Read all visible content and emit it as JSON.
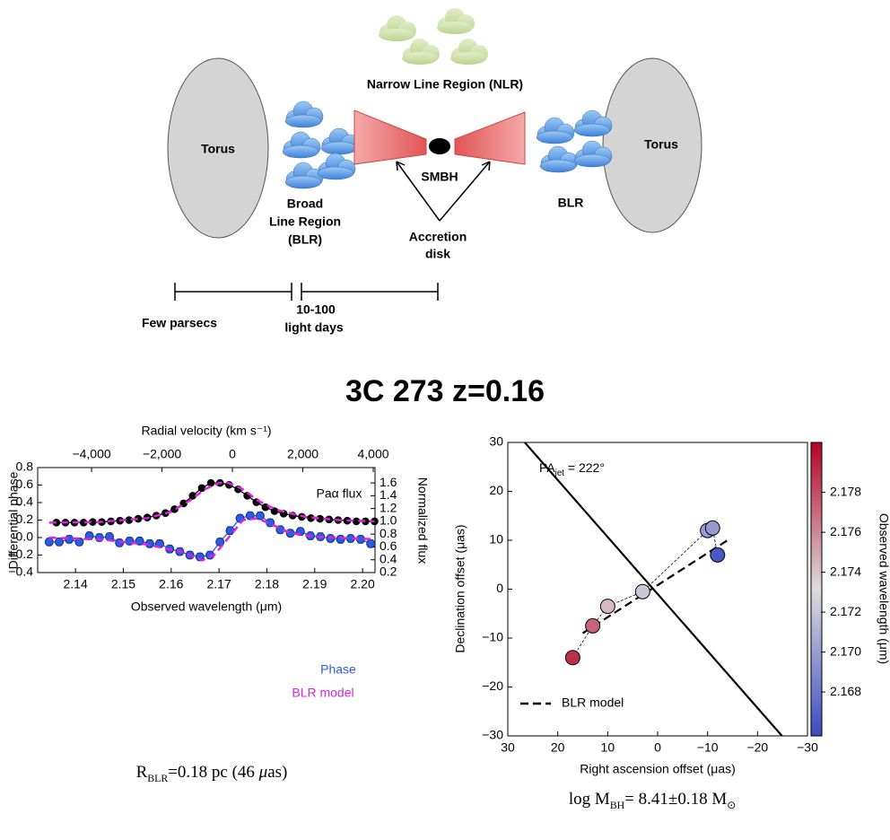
{
  "diagram": {
    "nlr": "Narrow Line Region (NLR)",
    "torus_left": "Torus",
    "torus_right": "Torus",
    "blr_left": [
      "Broad",
      "Line Region",
      "(BLR)"
    ],
    "smbh": "SMBH",
    "blr_right": "BLR",
    "accretion": [
      "Accretion",
      "disk"
    ],
    "scale_left": "Few parsecs",
    "scale_right": [
      "10-100",
      "light days"
    ]
  },
  "title": "3C 273 z=0.16",
  "chart_data": [
    {
      "type": "line",
      "xlabel": "Observed wavelength (μm)",
      "ylabel": "Differential phase",
      "y2label": "Normalized flux",
      "x2label": "Radial velocity (km s⁻¹)",
      "xlim": [
        2.1321,
        2.2026
      ],
      "xticks": [
        2.14,
        2.15,
        2.16,
        2.17,
        2.18,
        2.19,
        {
          "value": 2.2,
          "label": "2.20"
        }
      ],
      "x2lim": [
        -5530,
        4050
      ],
      "x2ticks": [
        {
          "value": -4000,
          "label": "−4,000"
        },
        {
          "value": -2000,
          "label": "−2,000"
        },
        0,
        {
          "value": 2000,
          "label": "2,000"
        },
        {
          "value": 4000,
          "label": "4,000"
        }
      ],
      "ylim": [
        -0.4,
        0.8
      ],
      "yticks": [
        {
          "value": -0.4,
          "label": "−0.4"
        },
        {
          "value": -0.2,
          "label": "−0.2"
        },
        {
          "value": 0,
          "label": "0.0"
        },
        0.2,
        0.4,
        0.6,
        0.8
      ],
      "y2lim": [
        0.2,
        1.84
      ],
      "y2ticks": [
        0.2,
        0.4,
        0.6,
        0.8,
        {
          "value": 1,
          "label": "1.0"
        },
        1.2,
        1.4,
        1.6
      ],
      "series": [
        {
          "name": "Paα flux",
          "color": "#000000",
          "axis": "y2",
          "marker": "circle",
          "x": [
            2.136,
            2.1379,
            2.1398,
            2.1417,
            2.1436,
            2.1455,
            2.1474,
            2.1493,
            2.1512,
            2.1531,
            2.155,
            2.1569,
            2.1588,
            2.1607,
            2.1626,
            2.1645,
            2.1664,
            2.1683,
            2.1702,
            2.1721,
            2.174,
            2.1759,
            2.1778,
            2.1797,
            2.1816,
            2.1835,
            2.1854,
            2.1873,
            2.1892,
            2.1911,
            2.193,
            2.1949,
            2.1968,
            2.1987,
            2.2006,
            2.2025
          ],
          "values": [
            0.98,
            0.98,
            0.98,
            0.98,
            0.99,
            0.99,
            1.0,
            1.01,
            1.02,
            1.04,
            1.06,
            1.09,
            1.13,
            1.19,
            1.28,
            1.4,
            1.52,
            1.6,
            1.6,
            1.57,
            1.5,
            1.4,
            1.3,
            1.22,
            1.16,
            1.12,
            1.09,
            1.07,
            1.05,
            1.04,
            1.03,
            1.02,
            1.01,
            1.0,
            1.0,
            1.0
          ]
        },
        {
          "color": "#e020e0",
          "axis": "y2",
          "dash": true,
          "x": [
            2.1345,
            2.145,
            2.155,
            2.16,
            2.164,
            2.167,
            2.17,
            2.172,
            2.175,
            2.178,
            2.182,
            2.188,
            2.195,
            2.2025
          ],
          "values": [
            0.98,
            0.99,
            1.05,
            1.15,
            1.33,
            1.5,
            1.6,
            1.6,
            1.5,
            1.33,
            1.18,
            1.07,
            1.02,
            1.0
          ]
        },
        {
          "name": "Phase",
          "color": "#2b5ce6",
          "marker": "circle",
          "x": [
            2.1345,
            2.1366,
            2.1387,
            2.1408,
            2.1429,
            2.145,
            2.1471,
            2.1492,
            2.1513,
            2.1534,
            2.1555,
            2.1576,
            2.1597,
            2.1618,
            2.1639,
            2.166,
            2.1681,
            2.1702,
            2.1723,
            2.1744,
            2.1765,
            2.1786,
            2.1807,
            2.1828,
            2.1849,
            2.187,
            2.1891,
            2.1912,
            2.1933,
            2.1954,
            2.1975,
            2.1996,
            2.2017
          ],
          "values": [
            -0.05,
            -0.05,
            -0.02,
            -0.05,
            0.02,
            0.0,
            0.01,
            -0.06,
            -0.04,
            -0.04,
            -0.07,
            -0.07,
            -0.13,
            -0.16,
            -0.2,
            -0.22,
            -0.2,
            -0.05,
            0.08,
            0.22,
            0.25,
            0.25,
            0.17,
            0.09,
            0.05,
            0.07,
            0.02,
            0.01,
            -0.01,
            -0.02,
            -0.01,
            -0.02,
            -0.07
          ],
          "errors": [
            0.04,
            0.04,
            0.04,
            0.04,
            0.04,
            0.04,
            0.04,
            0.04,
            0.04,
            0.04,
            0.04,
            0.04,
            0.04,
            0.04,
            0.04,
            0.04,
            0.04,
            0.04,
            0.04,
            0.04,
            0.04,
            0.04,
            0.04,
            0.04,
            0.04,
            0.04,
            0.04,
            0.04,
            0.04,
            0.04,
            0.04,
            0.04,
            0.04
          ]
        },
        {
          "name": "BLR model",
          "color": "#e020e0",
          "dash": true,
          "x": [
            2.1345,
            2.145,
            2.155,
            2.162,
            2.1665,
            2.169,
            2.172,
            2.175,
            2.178,
            2.181,
            2.185,
            2.19,
            2.2025
          ],
          "values": [
            0.0,
            -0.02,
            -0.08,
            -0.16,
            -0.26,
            -0.2,
            0.0,
            0.2,
            0.22,
            0.15,
            0.05,
            0.01,
            -0.02
          ]
        }
      ],
      "caption": [
        {
          "text": "R"
        },
        {
          "text": "BLR",
          "sub": true
        },
        {
          "text": "=0.18 pc (46 "
        },
        {
          "text": "μ",
          "italic": true
        },
        {
          "text": "as)"
        }
      ]
    },
    {
      "type": "scatter",
      "xlabel": "Right ascension offset (μas)",
      "ylabel": "Declination offset (μas)",
      "clabel": "Observed wavelength (μm)",
      "xlim": [
        30,
        -30
      ],
      "xticks": [
        30,
        20,
        10,
        0,
        {
          "value": -10,
          "label": "−10"
        },
        {
          "value": -20,
          "label": "−20"
        },
        {
          "value": -30,
          "label": "−30"
        }
      ],
      "ylim": [
        -30,
        30
      ],
      "yticks": [
        {
          "value": -30,
          "label": "−30"
        },
        {
          "value": -20,
          "label": "−20"
        },
        {
          "value": -10,
          "label": "−10"
        },
        0,
        10,
        20,
        30
      ],
      "x": [
        17,
        13,
        10,
        3,
        -10,
        -11,
        -12
      ],
      "values": [
        -14,
        -7.5,
        -3.5,
        -0.5,
        12,
        12.5,
        7
      ],
      "c": [
        2.179,
        2.1772,
        2.1743,
        2.1722,
        2.17,
        2.1698,
        2.1665
      ],
      "clim": [
        2.1658,
        2.1805
      ],
      "cticks": [
        2.168,
        {
          "value": 2.17,
          "label": "2.170"
        },
        2.172,
        2.174,
        2.176,
        2.178
      ],
      "colormap": [
        "#3b4cc0",
        "#dddcdc",
        "#b40426"
      ],
      "connect": true,
      "lines": [
        {
          "name": "BLR model",
          "color": "#000000",
          "dash": true,
          "x": [
            15,
            -14
          ],
          "values": [
            -9,
            10
          ]
        },
        {
          "color": "#000000",
          "x": [
            26.6,
            -24.9
          ],
          "values": [
            30,
            -30
          ]
        }
      ],
      "annotation": [
        {
          "text": "PA"
        },
        {
          "text": "jet",
          "sub": true
        },
        {
          "text": " = 222°"
        }
      ],
      "caption": [
        {
          "text": "log M"
        },
        {
          "text": "BH",
          "sub": true
        },
        {
          "text": "= 8.41±0.18 M"
        },
        {
          "text": "⊙",
          "sub": true
        }
      ]
    }
  ]
}
